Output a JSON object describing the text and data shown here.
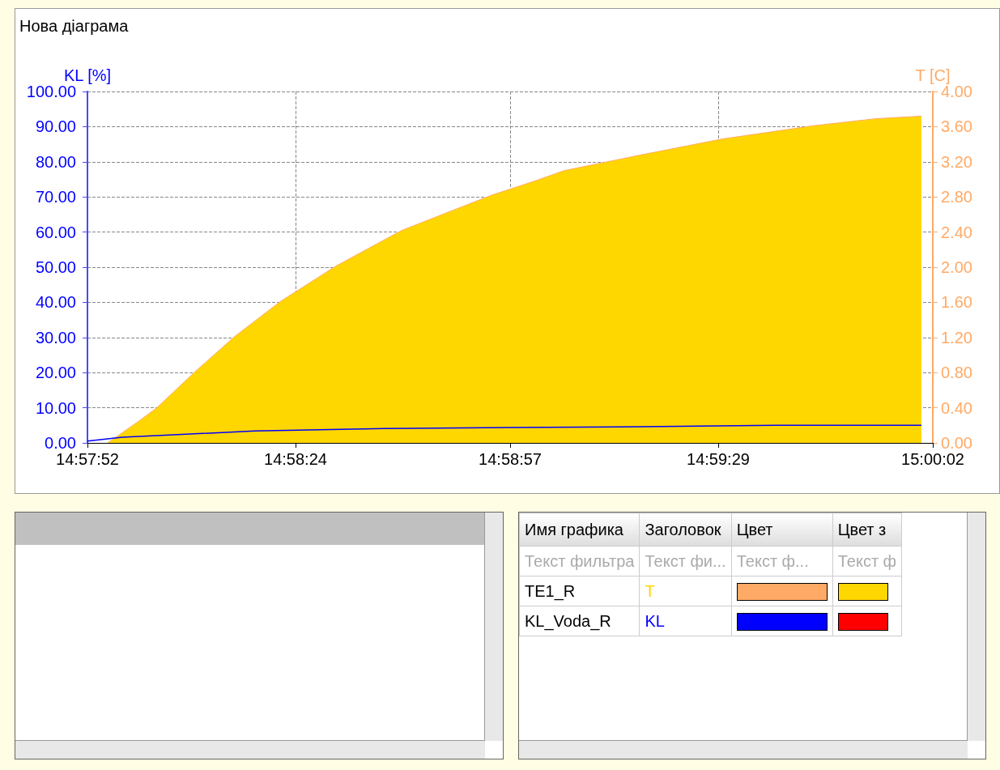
{
  "chart_data": {
    "type": "area",
    "title": "Нова діаграма",
    "ylabel": "KL [%]",
    "y2label": "T [C]",
    "xlim": [
      14.964444,
      15.000556
    ],
    "xticks": [
      {
        "value": 14.964444,
        "label": "14:57:52"
      },
      {
        "value": 14.973333,
        "label": "14:58:24"
      },
      {
        "value": 14.9825,
        "label": "14:58:57"
      },
      {
        "value": 14.991389,
        "label": "14:59:29"
      },
      {
        "value": 15.000556,
        "label": "15:00:02"
      }
    ],
    "ylim": [
      0,
      100
    ],
    "yticks": [
      {
        "value": 0,
        "label": "0.00"
      },
      {
        "value": 10,
        "label": "10.00"
      },
      {
        "value": 20,
        "label": "20.00"
      },
      {
        "value": 30,
        "label": "30.00"
      },
      {
        "value": 40,
        "label": "40.00"
      },
      {
        "value": 50,
        "label": "50.00"
      },
      {
        "value": 60,
        "label": "60.00"
      },
      {
        "value": 70,
        "label": "70.00"
      },
      {
        "value": 80,
        "label": "80.00"
      },
      {
        "value": 90,
        "label": "90.00"
      },
      {
        "value": 100,
        "label": "100.00"
      }
    ],
    "y2lim": [
      0,
      4
    ],
    "y2ticks": [
      {
        "value": 0,
        "label": "0.00"
      },
      {
        "value": 0.4,
        "label": "0.40"
      },
      {
        "value": 0.8,
        "label": "0.80"
      },
      {
        "value": 1.2,
        "label": "1.20"
      },
      {
        "value": 1.6,
        "label": "1.60"
      },
      {
        "value": 2,
        "label": "2.00"
      },
      {
        "value": 2.4,
        "label": "2.40"
      },
      {
        "value": 2.8,
        "label": "2.80"
      },
      {
        "value": 3.2,
        "label": "3.20"
      },
      {
        "value": 3.6,
        "label": "3.60"
      },
      {
        "value": 4,
        "label": "4.00"
      }
    ],
    "grid": true,
    "marker": "none",
    "series": [
      {
        "name": "T",
        "axis": "y2",
        "color": "#ffd700",
        "x": [
          14.96531,
          14.96665,
          14.96741,
          14.969,
          14.97073,
          14.97269,
          14.97504,
          14.97788,
          14.98171,
          14.98354,
          14.98481,
          14.98813,
          14.99158,
          14.99545,
          14.99811,
          15.00007
        ],
        "values": [
          0,
          0.25,
          0.4,
          0.8,
          1.21,
          1.61,
          2.01,
          2.42,
          2.82,
          2.98,
          3.1,
          3.28,
          3.46,
          3.61,
          3.69,
          3.72
        ]
      },
      {
        "name": "KL",
        "type": "line",
        "color": "#0000ff",
        "x": [
          14.964444,
          14.96593,
          14.97159,
          14.97715,
          14.98254,
          14.98813,
          14.99383,
          15.00007
        ],
        "values": [
          0.5,
          1.6,
          3.4,
          4.1,
          4.4,
          4.6,
          5.0,
          5.0
        ]
      }
    ],
    "annotations": [
      "Имя графика",
      "Заголовок",
      "Цвет",
      "Цвет з",
      "Текст фильтра",
      "Текст фи...",
      "Текст ф...",
      "Текст ф",
      "TE1_R",
      "KL_Voda_R"
    ]
  }
}
